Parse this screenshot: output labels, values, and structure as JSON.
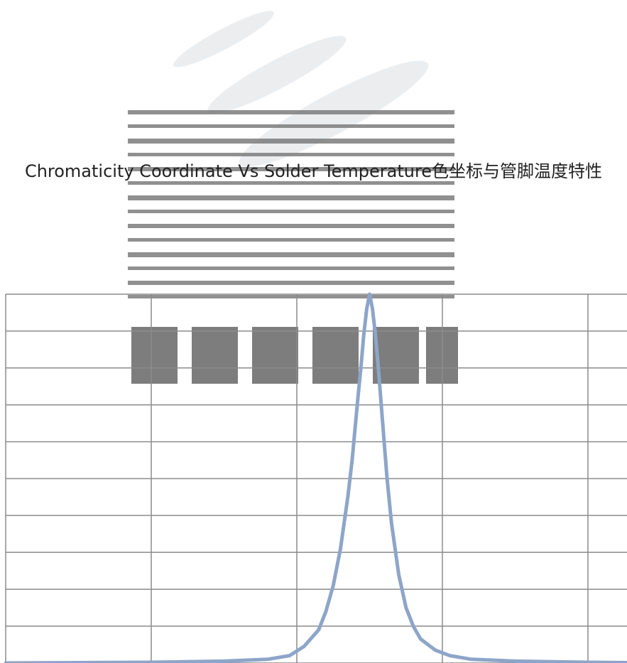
{
  "chart_data": {
    "type": "line",
    "title": "Chromaticity Coordinate Vs Solder Temperature色坐标与管脚温度特性",
    "xlabel": "",
    "ylabel": "",
    "xlim": [
      0,
      4.3
    ],
    "ylim": [
      0,
      10
    ],
    "grid": true,
    "x_gridlines": [
      0,
      1,
      2,
      3,
      4
    ],
    "y_gridlines": [
      0,
      1,
      2,
      3,
      4,
      5,
      6,
      7,
      8,
      9,
      10
    ],
    "series": [
      {
        "x": [
          0,
          0.5,
          1.0,
          1.5,
          1.8,
          1.95,
          2.05,
          2.15,
          2.2,
          2.25,
          2.3,
          2.35,
          2.38,
          2.42,
          2.44,
          2.46,
          2.48,
          2.5,
          2.52,
          2.54,
          2.56,
          2.58,
          2.6,
          2.62,
          2.65,
          2.7,
          2.75,
          2.8,
          2.85,
          2.95,
          3.05,
          3.2,
          3.5,
          4.0,
          4.3
        ],
        "y": [
          0.0,
          0.01,
          0.02,
          0.05,
          0.1,
          0.2,
          0.45,
          0.9,
          1.4,
          2.1,
          3.1,
          4.5,
          5.5,
          7.2,
          8.0,
          8.9,
          9.6,
          10.0,
          9.6,
          8.9,
          8.0,
          7.0,
          6.0,
          5.0,
          3.8,
          2.4,
          1.5,
          1.0,
          0.65,
          0.35,
          0.2,
          0.1,
          0.05,
          0.02,
          0.01
        ],
        "color": "#8ea5c9"
      }
    ]
  }
}
